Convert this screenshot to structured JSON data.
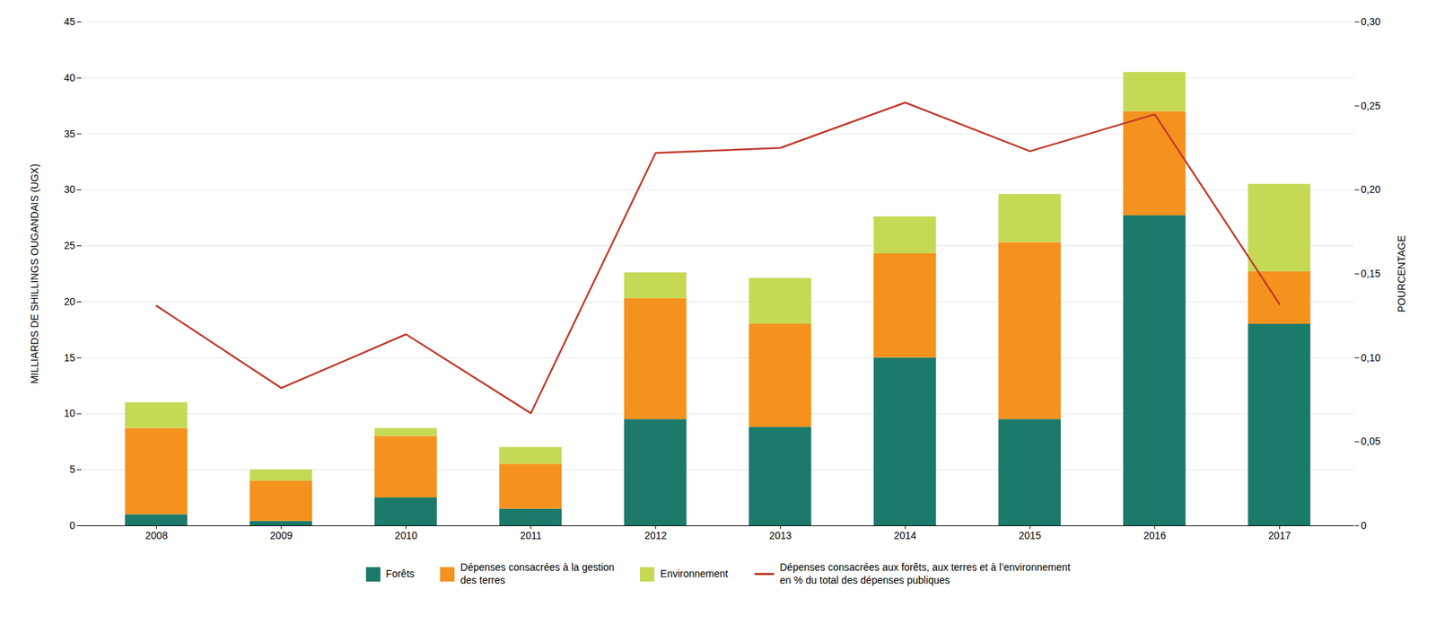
{
  "chart_data": {
    "type": "bar",
    "stacked": true,
    "categories": [
      "2008",
      "2009",
      "2010",
      "2011",
      "2012",
      "2013",
      "2014",
      "2015",
      "2016",
      "2017"
    ],
    "series": [
      {
        "name": "Forêts",
        "color": "#1c7a6b",
        "values": [
          1.0,
          0.4,
          2.5,
          1.5,
          9.5,
          8.8,
          15.0,
          9.5,
          27.7,
          18.0
        ]
      },
      {
        "name": "Dépenses consacrées à la gestion\ndes terres",
        "color": "#f5921e",
        "values": [
          7.7,
          3.6,
          5.5,
          4.0,
          10.8,
          9.2,
          9.3,
          15.8,
          9.3,
          4.7
        ]
      },
      {
        "name": "Environnement",
        "color": "#c5d955",
        "values": [
          2.3,
          1.0,
          0.7,
          1.5,
          2.3,
          4.1,
          3.3,
          4.3,
          3.5,
          7.8
        ]
      },
      {
        "name": "Dépenses consacrées aux forêts, aux terres et à l’environnement\nen % du total des dépenses publiques",
        "type": "line",
        "axis": "y2",
        "color": "#c0392b",
        "values": [
          0.131,
          0.082,
          0.114,
          0.067,
          0.222,
          0.225,
          0.252,
          0.223,
          0.245,
          0.132
        ]
      }
    ],
    "ylabel": "MILLIARDS DE SHILLINGS OUGANDAIS (UGX)",
    "y2label": "POURCENTAGE",
    "ylim": [
      0,
      45
    ],
    "yticks": [
      0,
      5,
      10,
      15,
      20,
      25,
      30,
      35,
      40,
      45
    ],
    "y2lim": [
      0,
      0.3
    ],
    "y2ticks": [
      0,
      {
        "value": 0.05,
        "label": "0,05"
      },
      {
        "value": 0.1,
        "label": "0,10"
      },
      {
        "value": 0.15,
        "label": "0,15"
      },
      {
        "value": 0.2,
        "label": "0,20"
      },
      {
        "value": 0.25,
        "label": "0,25"
      },
      {
        "value": 0.3,
        "label": "0,30"
      }
    ],
    "grid": true,
    "legend": "bottom"
  }
}
